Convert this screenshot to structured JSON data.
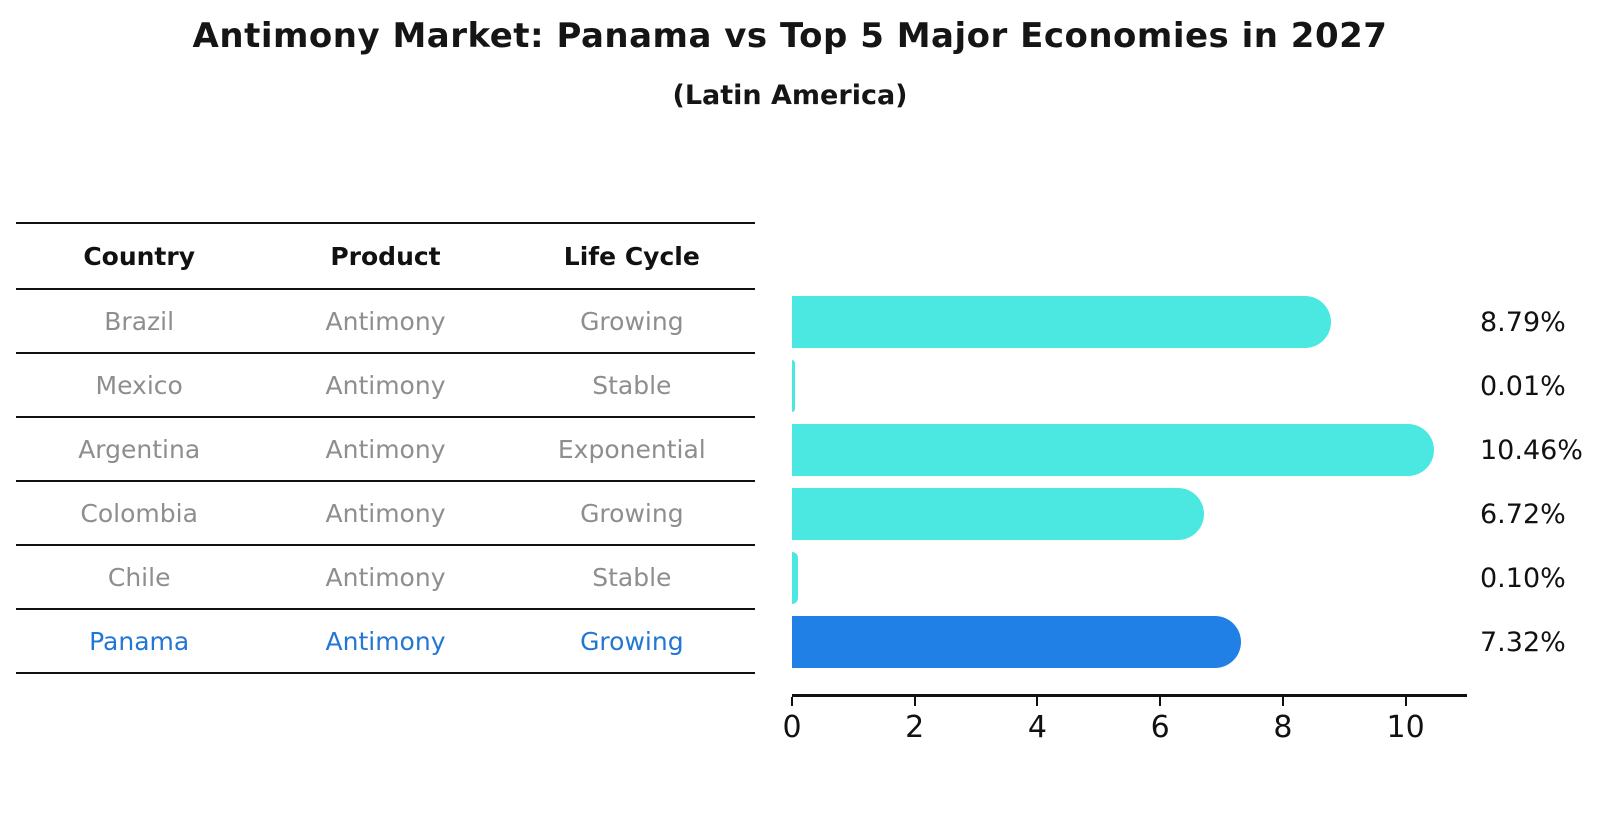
{
  "title": "Antimony Market: Panama vs Top 5 Major Economies in 2027",
  "subtitle": "(Latin America)",
  "table": {
    "headers": [
      "Country",
      "Product",
      "Life Cycle"
    ],
    "rows": [
      {
        "country": "Brazil",
        "product": "Antimony",
        "life_cycle": "Growing",
        "value": 8.79,
        "label": "8.79%",
        "highlight": false
      },
      {
        "country": "Mexico",
        "product": "Antimony",
        "life_cycle": "Stable",
        "value": 0.01,
        "label": "0.01%",
        "highlight": false
      },
      {
        "country": "Argentina",
        "product": "Antimony",
        "life_cycle": "Exponential",
        "value": 10.46,
        "label": "10.46%",
        "highlight": false
      },
      {
        "country": "Colombia",
        "product": "Antimony",
        "life_cycle": "Growing",
        "value": 6.72,
        "label": "6.72%",
        "highlight": false
      },
      {
        "country": "Chile",
        "product": "Antimony",
        "life_cycle": "Stable",
        "value": 0.1,
        "label": "0.10%",
        "highlight": false
      },
      {
        "country": "Panama",
        "product": "Antimony",
        "life_cycle": "Growing",
        "value": 7.32,
        "label": "7.32%",
        "highlight": true
      }
    ]
  },
  "chart_data": {
    "type": "bar",
    "orientation": "horizontal",
    "title": "Antimony Market: Panama vs Top 5 Major Economies in 2027",
    "subtitle": "(Latin America)",
    "categories": [
      "Brazil",
      "Mexico",
      "Argentina",
      "Colombia",
      "Chile",
      "Panama"
    ],
    "values": [
      8.79,
      0.01,
      10.46,
      6.72,
      0.1,
      7.32
    ],
    "data_labels": [
      "8.79%",
      "0.01%",
      "10.46%",
      "6.72%",
      "0.10%",
      "7.32%"
    ],
    "highlighted_category": "Panama",
    "xlabel": "",
    "ylabel": "",
    "xlim": [
      0,
      11
    ],
    "x_ticks": [
      0,
      2,
      4,
      6,
      8,
      10
    ],
    "grid": false,
    "legend": false
  },
  "colors": {
    "bar": "#4be8e1",
    "highlight_bar": "#2080e6",
    "highlight_text": "#2377d4",
    "row_text": "#8e8e8e",
    "line": "#111111",
    "label_text": "#111111",
    "background": "#ffffff"
  }
}
